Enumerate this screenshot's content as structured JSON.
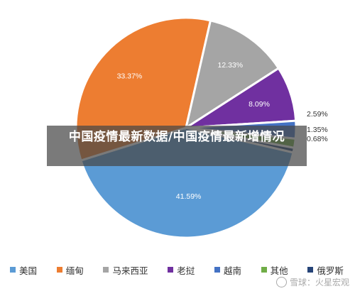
{
  "chart_data": {
    "type": "pie",
    "categories": [
      "美国",
      "缅甸",
      "马来西亚",
      "老挝",
      "越南",
      "其他",
      "俄罗斯"
    ],
    "values": [
      41.59,
      33.37,
      12.33,
      8.09,
      2.59,
      1.35,
      0.68
    ],
    "value_labels": [
      "41.59%",
      "33.37%",
      "12.33%",
      "8.09%",
      "2.59%",
      "1.35%",
      "0.68%"
    ],
    "colors": [
      "#5B9BD5",
      "#ED7D31",
      "#A5A5A5",
      "#7030A0",
      "#4472C4",
      "#70AD47",
      "#264478"
    ],
    "legend_position": "bottom"
  },
  "overlay": {
    "title": "中国疫情最新数据/中国疫情最新增情况"
  },
  "watermark": {
    "text": "雪球：火星宏观"
  }
}
